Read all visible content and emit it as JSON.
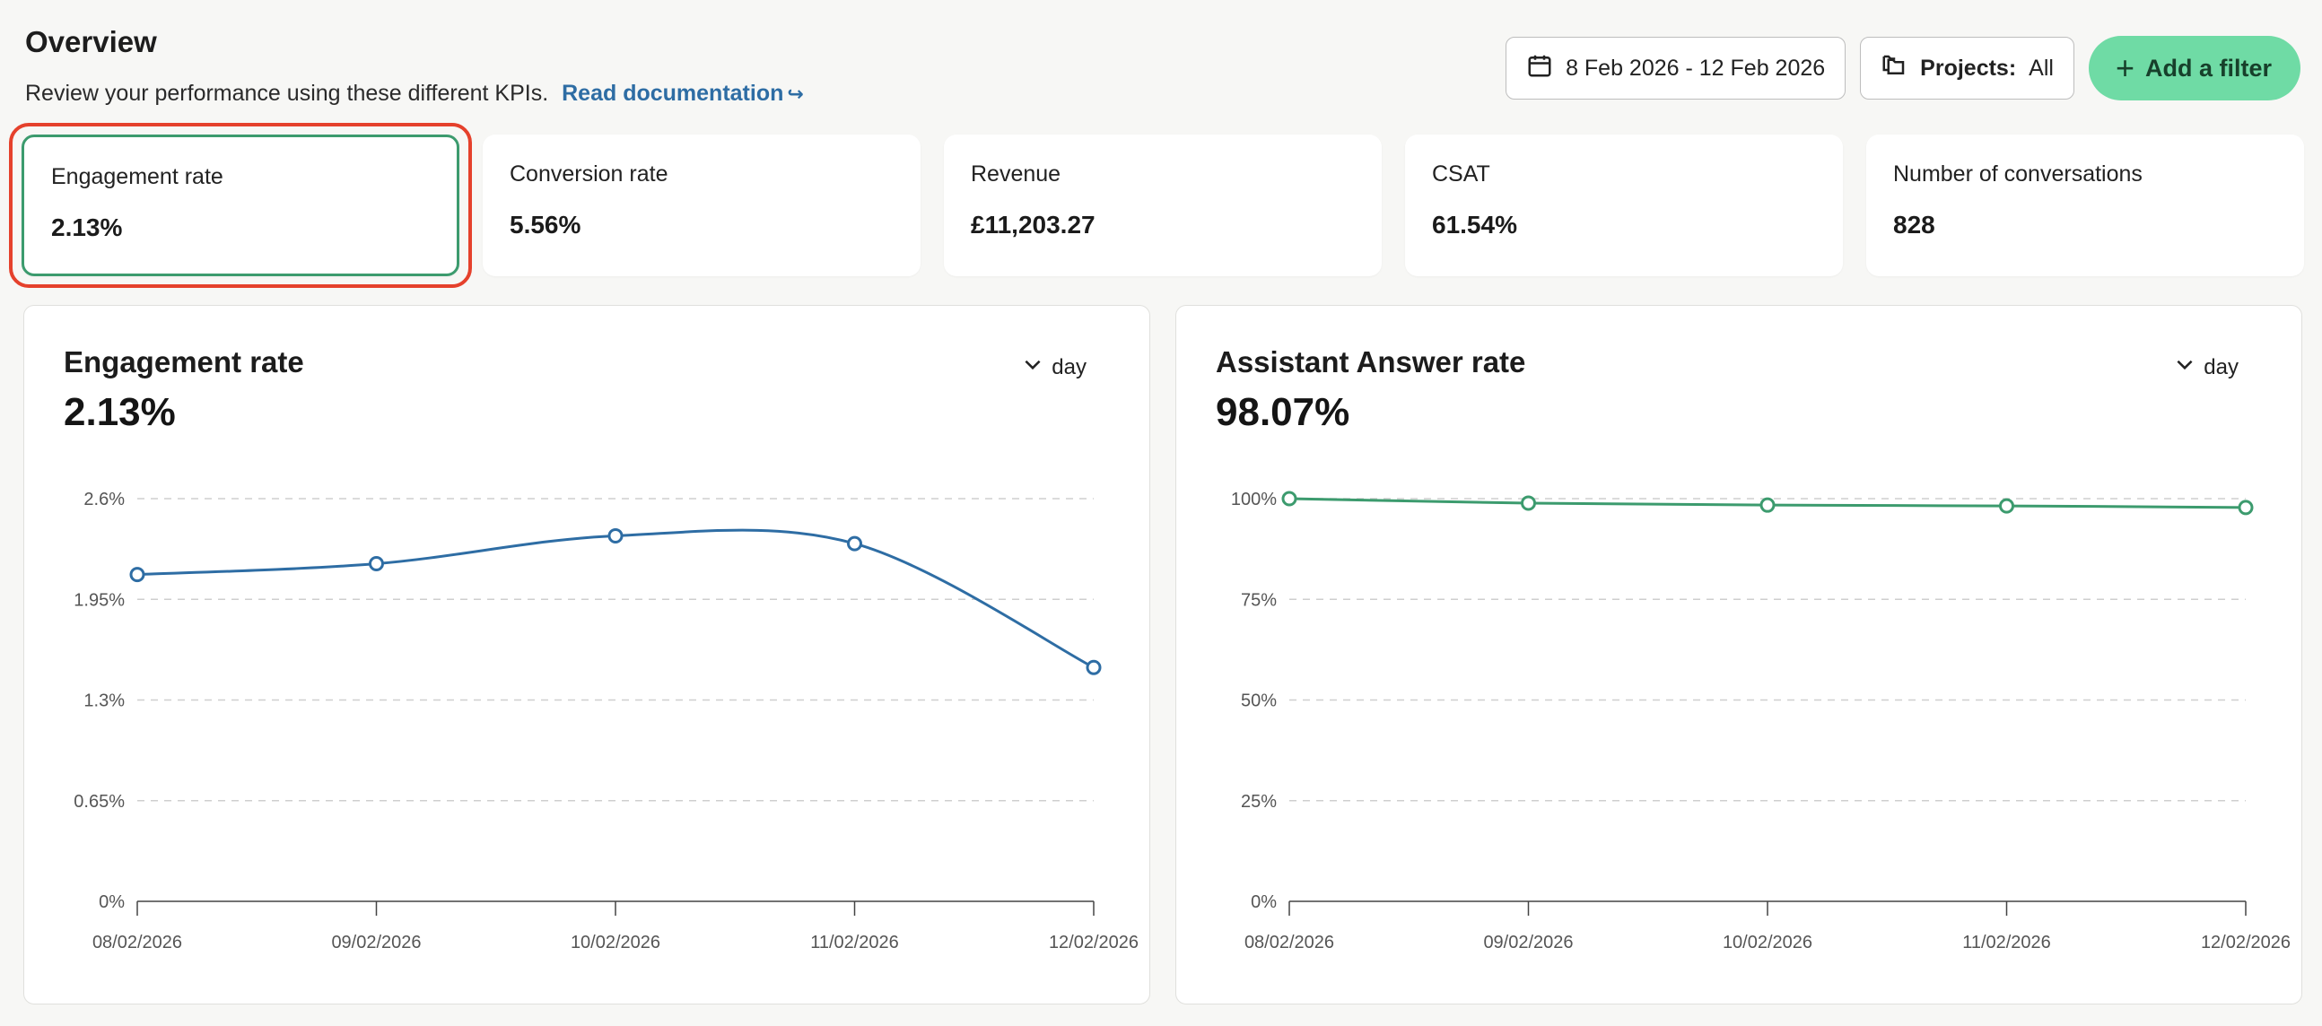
{
  "header": {
    "title": "Overview",
    "subtitle": "Review your performance using these different KPIs.",
    "doc_link": "Read documentation",
    "doc_link_icon": "share-arrow-icon"
  },
  "toolbar": {
    "date_range": "8 Feb 2026 - 12 Feb 2026",
    "date_icon": "calendar-icon",
    "projects_label": "Projects:",
    "projects_value": "All",
    "projects_icon": "folders-icon",
    "add_filter": "Add a filter",
    "accent_color": "#6fdba5"
  },
  "kpis": [
    {
      "label": "Engagement rate",
      "value": "2.13%",
      "selected": true
    },
    {
      "label": "Conversion rate",
      "value": "5.56%"
    },
    {
      "label": "Revenue",
      "value": "£11,203.27"
    },
    {
      "label": "CSAT",
      "value": "61.54%"
    },
    {
      "label": "Number of conversations",
      "value": "828"
    }
  ],
  "panels": [
    {
      "title": "Engagement rate",
      "value": "2.13%",
      "granularity": "day"
    },
    {
      "title": "Assistant Answer rate",
      "value": "98.07%",
      "granularity": "day"
    }
  ],
  "chart_data": [
    {
      "type": "line",
      "title": "Engagement rate",
      "x": [
        "08/02/2026",
        "09/02/2026",
        "10/02/2026",
        "11/02/2026",
        "12/02/2026"
      ],
      "series": [
        {
          "values": [
            2.11,
            2.18,
            2.36,
            2.31,
            1.51
          ],
          "color": "#2e6da4"
        }
      ],
      "yticks": [
        "0%",
        "0.65%",
        "1.3%",
        "1.95%",
        "2.6%"
      ],
      "ylim": [
        0,
        2.6
      ],
      "grid": true,
      "curve": "smooth"
    },
    {
      "type": "line",
      "title": "Assistant Answer rate",
      "x": [
        "08/02/2026",
        "09/02/2026",
        "10/02/2026",
        "11/02/2026",
        "12/02/2026"
      ],
      "series": [
        {
          "values": [
            100,
            98.9,
            98.4,
            98.2,
            97.8
          ],
          "color": "#3c9b6e"
        }
      ],
      "yticks": [
        "0%",
        "25%",
        "50%",
        "75%",
        "100%"
      ],
      "ylim": [
        0,
        100
      ],
      "grid": true,
      "curve": "smooth"
    }
  ]
}
